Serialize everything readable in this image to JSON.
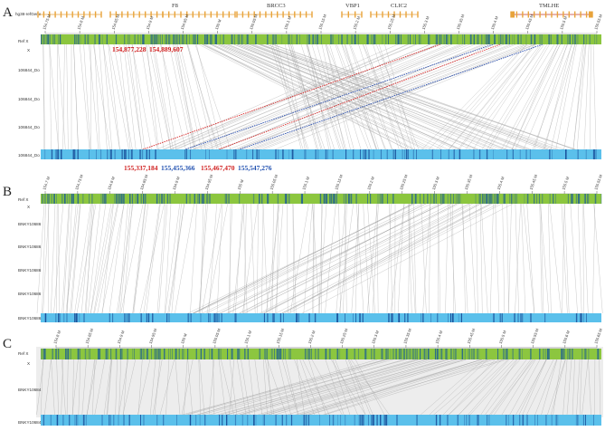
{
  "colors": {
    "ref_track": "#8cc63f",
    "ref_stripe": "#2a6a8a",
    "query_track": "#5bc0eb",
    "query_stripe": "#1a4f9a",
    "link": "#9a9a9a",
    "highlight_red": "#d62828",
    "highlight_blue": "#2a4fb0",
    "gene": "#e8a33a",
    "gene_highlight": "#c0392b"
  },
  "panels": [
    {
      "letter": "A",
      "gene_track_label": "hg38-refGene",
      "genes": [
        {
          "name": "F8"
        },
        {
          "name": "BRCC3"
        },
        {
          "name": "VBP1"
        },
        {
          "name": "CLIC2"
        },
        {
          "name": "TMLHE"
        }
      ],
      "ref_label": "Ref X",
      "ref_sublabel": "X",
      "ticks": [
        "154.75 M",
        "154.8 M",
        "154.85 M",
        "154.9 M",
        "154.95 M",
        "155 M",
        "155.05 M",
        "155.1 M",
        "155.15 M",
        "155.2 M",
        "155.25 M",
        "155.3 M",
        "155.35 M",
        "155.4 M",
        "155.45 M",
        "155.5 M",
        "155.55 M"
      ],
      "query_labels": [
        "106844_Do",
        "106844_Do",
        "106844_Do",
        "106844_Do"
      ],
      "ref_coords": [
        {
          "text": "154,877,228",
          "color": "red"
        },
        {
          "text": "154,889,607",
          "color": "red"
        }
      ],
      "query_coords": [
        {
          "text": "155,337,184",
          "color": "red"
        },
        {
          "text": "155,455,366",
          "color": "blue"
        },
        {
          "text": "155,467,470",
          "color": "red"
        },
        {
          "text": "155,547,276",
          "color": "blue"
        }
      ]
    },
    {
      "letter": "B",
      "ref_label": "Ref X",
      "ref_sublabel": "X",
      "ticks": [
        "154.7 M",
        "154.75 M",
        "154.8 M",
        "154.85 M",
        "154.9 M",
        "154.95 M",
        "155 M",
        "155.05 M",
        "155.1 M",
        "155.15 M",
        "155.2 M",
        "155.25 M",
        "155.3 M",
        "155.35 M",
        "155.4 M",
        "155.45 M",
        "155.5 M",
        "155.55 M"
      ],
      "query_labels": [
        "BNKY10686",
        "BNKY10686",
        "BNKY10686",
        "BNKY10686",
        "BNKY10686"
      ]
    },
    {
      "letter": "C",
      "ref_label": "Ref X",
      "ref_sublabel": "X",
      "ticks": [
        "154.8 M",
        "154.85 M",
        "154.9 M",
        "154.95 M",
        "155 M",
        "155.05 M",
        "155.1 M",
        "155.15 M",
        "155.2 M",
        "155.25 M",
        "155.3 M",
        "155.35 M",
        "155.4 M",
        "155.45 M",
        "155.5 M",
        "155.55 M",
        "155.6 M",
        "155.65 M"
      ],
      "query_labels": [
        "BNKY10684",
        "BNKY10684"
      ]
    }
  ]
}
